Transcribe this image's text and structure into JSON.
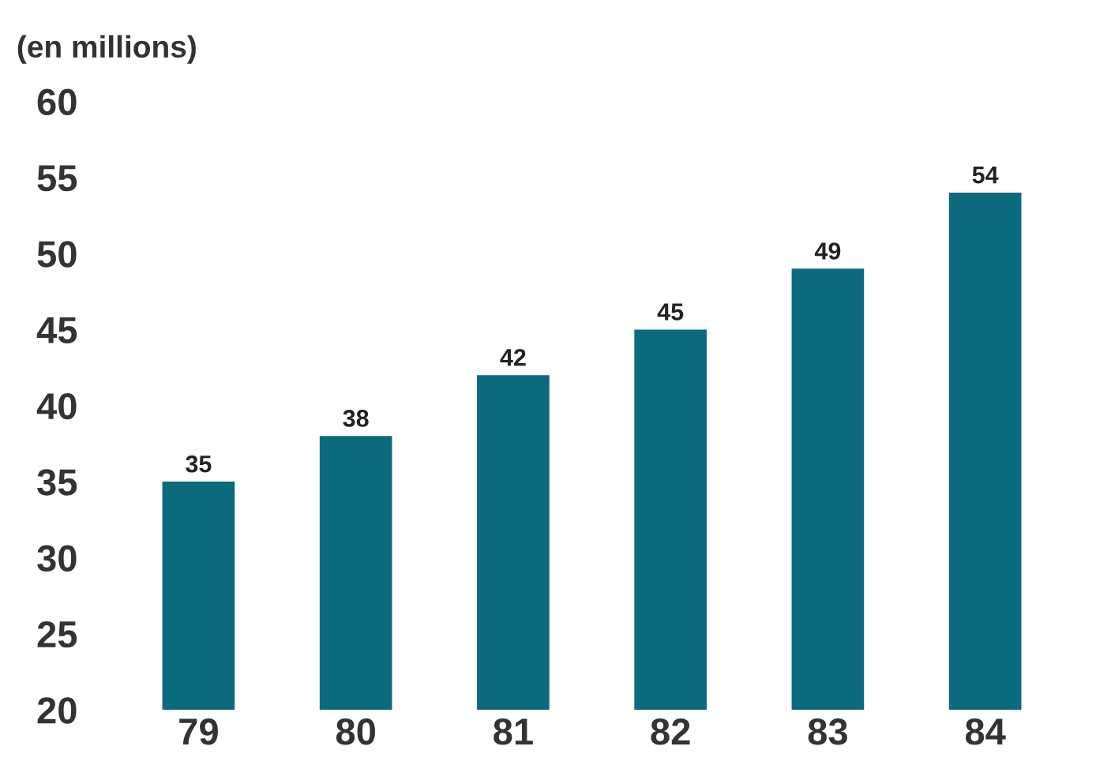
{
  "chart_data": {
    "type": "bar",
    "ylabel": "(en millions)",
    "categories": [
      "79",
      "80",
      "81",
      "82",
      "83",
      "84"
    ],
    "values": [
      35,
      38,
      42,
      45,
      49,
      54
    ],
    "color": "#0b6a7c",
    "ylim": [
      20,
      60
    ],
    "yticks": [
      20,
      25,
      30,
      35,
      40,
      45,
      50,
      55,
      60
    ],
    "data_labels": true,
    "grid": false
  }
}
